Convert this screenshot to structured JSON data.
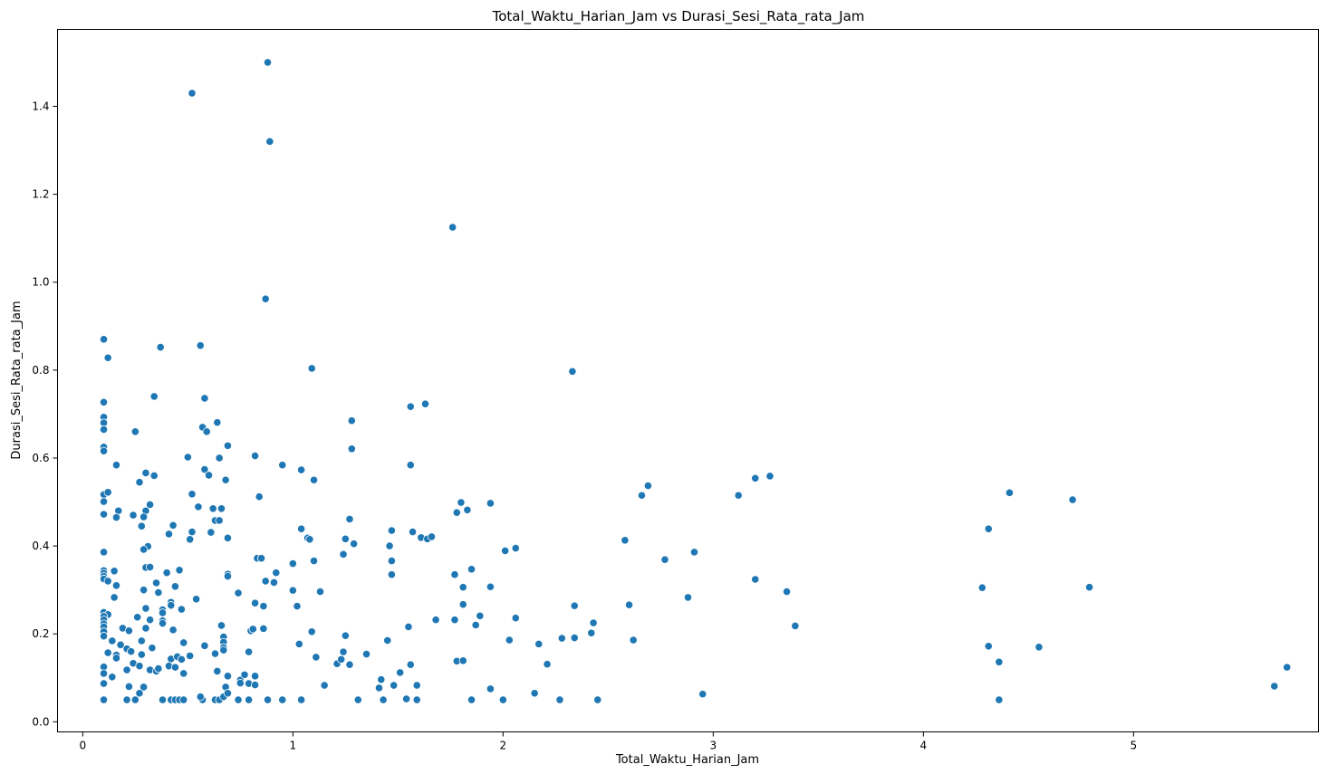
{
  "chart_data": {
    "type": "scatter",
    "title": "Total_Waktu_Harian_Jam vs Durasi_Sesi_Rata_rata_Jam",
    "xlabel": "Total_Waktu_Harian_Jam",
    "ylabel": "Durasi_Sesi_Rata_rata_Jam",
    "xlim": [
      -0.12,
      5.88
    ],
    "ylim": [
      -0.023,
      1.575
    ],
    "x_ticks": [
      0,
      1,
      2,
      3,
      4,
      5
    ],
    "x_tick_labels": [
      "0",
      "1",
      "2",
      "3",
      "4",
      "5"
    ],
    "y_ticks": [
      0.0,
      0.2,
      0.4,
      0.6,
      0.8,
      1.0,
      1.2,
      1.4
    ],
    "y_tick_labels": [
      "0.0",
      "0.2",
      "0.4",
      "0.6",
      "0.8",
      "1.0",
      "1.2",
      "1.4"
    ],
    "grid": false,
    "marker_color": "#1f77b4",
    "points": [
      [
        0.88,
        1.5
      ],
      [
        0.52,
        1.43
      ],
      [
        0.89,
        1.32
      ],
      [
        1.76,
        1.125
      ],
      [
        0.87,
        0.962
      ],
      [
        0.1,
        0.87
      ],
      [
        0.37,
        0.852
      ],
      [
        0.56,
        0.856
      ],
      [
        0.12,
        0.828
      ],
      [
        1.09,
        0.804
      ],
      [
        2.33,
        0.797
      ],
      [
        0.34,
        0.74
      ],
      [
        0.58,
        0.736
      ],
      [
        0.1,
        0.727
      ],
      [
        1.56,
        0.717
      ],
      [
        1.63,
        0.723
      ],
      [
        0.1,
        0.693
      ],
      [
        0.1,
        0.68
      ],
      [
        1.28,
        0.685
      ],
      [
        0.64,
        0.681
      ],
      [
        0.1,
        0.665
      ],
      [
        0.57,
        0.67
      ],
      [
        0.25,
        0.66
      ],
      [
        0.59,
        0.66
      ],
      [
        0.1,
        0.625
      ],
      [
        0.1,
        0.616
      ],
      [
        0.69,
        0.628
      ],
      [
        1.28,
        0.621
      ],
      [
        0.82,
        0.605
      ],
      [
        0.5,
        0.602
      ],
      [
        0.65,
        0.6
      ],
      [
        0.16,
        0.584
      ],
      [
        0.95,
        0.584
      ],
      [
        1.56,
        0.584
      ],
      [
        0.58,
        0.574
      ],
      [
        1.04,
        0.573
      ],
      [
        0.3,
        0.566
      ],
      [
        0.34,
        0.56
      ],
      [
        0.6,
        0.561
      ],
      [
        1.1,
        0.55
      ],
      [
        0.68,
        0.55
      ],
      [
        0.27,
        0.545
      ],
      [
        2.69,
        0.537
      ],
      [
        3.27,
        0.559
      ],
      [
        3.2,
        0.554
      ],
      [
        0.1,
        0.517
      ],
      [
        0.12,
        0.522
      ],
      [
        0.52,
        0.518
      ],
      [
        0.84,
        0.512
      ],
      [
        2.66,
        0.515
      ],
      [
        3.12,
        0.515
      ],
      [
        4.41,
        0.521
      ],
      [
        0.1,
        0.501
      ],
      [
        0.32,
        0.494
      ],
      [
        0.55,
        0.489
      ],
      [
        0.62,
        0.485
      ],
      [
        0.66,
        0.485
      ],
      [
        1.8,
        0.499
      ],
      [
        1.94,
        0.497
      ],
      [
        4.71,
        0.505
      ],
      [
        0.17,
        0.48
      ],
      [
        0.3,
        0.48
      ],
      [
        1.78,
        0.476
      ],
      [
        1.83,
        0.482
      ],
      [
        0.1,
        0.472
      ],
      [
        0.16,
        0.465
      ],
      [
        0.24,
        0.47
      ],
      [
        0.29,
        0.466
      ],
      [
        0.63,
        0.458
      ],
      [
        0.65,
        0.458
      ],
      [
        1.27,
        0.461
      ],
      [
        0.43,
        0.447
      ],
      [
        0.28,
        0.445
      ],
      [
        1.04,
        0.439
      ],
      [
        0.52,
        0.432
      ],
      [
        0.61,
        0.431
      ],
      [
        1.47,
        0.435
      ],
      [
        1.57,
        0.432
      ],
      [
        4.31,
        0.439
      ],
      [
        0.41,
        0.427
      ],
      [
        1.07,
        0.418
      ],
      [
        1.08,
        0.415
      ],
      [
        1.25,
        0.416
      ],
      [
        1.61,
        0.419
      ],
      [
        1.64,
        0.416
      ],
      [
        1.66,
        0.421
      ],
      [
        0.51,
        0.415
      ],
      [
        0.69,
        0.418
      ],
      [
        2.58,
        0.413
      ],
      [
        1.29,
        0.405
      ],
      [
        1.46,
        0.4
      ],
      [
        0.31,
        0.399
      ],
      [
        0.29,
        0.392
      ],
      [
        2.01,
        0.389
      ],
      [
        2.06,
        0.395
      ],
      [
        2.91,
        0.386
      ],
      [
        0.1,
        0.386
      ],
      [
        1.24,
        0.381
      ],
      [
        0.83,
        0.372
      ],
      [
        0.85,
        0.372
      ],
      [
        1.1,
        0.366
      ],
      [
        1.47,
        0.366
      ],
      [
        2.77,
        0.369
      ],
      [
        1.0,
        0.36
      ],
      [
        0.3,
        0.351
      ],
      [
        0.32,
        0.352
      ],
      [
        1.85,
        0.347
      ],
      [
        0.1,
        0.344
      ],
      [
        0.1,
        0.338
      ],
      [
        0.15,
        0.343
      ],
      [
        0.46,
        0.345
      ],
      [
        0.1,
        0.331
      ],
      [
        0.1,
        0.325
      ],
      [
        0.4,
        0.339
      ],
      [
        0.69,
        0.336
      ],
      [
        0.69,
        0.331
      ],
      [
        0.92,
        0.339
      ],
      [
        1.47,
        0.335
      ],
      [
        1.77,
        0.335
      ],
      [
        3.2,
        0.324
      ],
      [
        0.12,
        0.32
      ],
      [
        0.35,
        0.316
      ],
      [
        0.87,
        0.32
      ],
      [
        0.91,
        0.317
      ],
      [
        0.16,
        0.31
      ],
      [
        0.44,
        0.308
      ],
      [
        1.81,
        0.306
      ],
      [
        1.94,
        0.307
      ],
      [
        4.28,
        0.305
      ],
      [
        4.79,
        0.306
      ],
      [
        0.29,
        0.3
      ],
      [
        0.36,
        0.294
      ],
      [
        0.74,
        0.293
      ],
      [
        1.0,
        0.299
      ],
      [
        1.13,
        0.296
      ],
      [
        3.35,
        0.296
      ],
      [
        0.15,
        0.283
      ],
      [
        0.54,
        0.279
      ],
      [
        2.88,
        0.283
      ],
      [
        0.82,
        0.27
      ],
      [
        0.42,
        0.272
      ],
      [
        0.3,
        0.258
      ],
      [
        0.38,
        0.255
      ],
      [
        0.42,
        0.265
      ],
      [
        0.47,
        0.256
      ],
      [
        0.86,
        0.263
      ],
      [
        1.02,
        0.263
      ],
      [
        1.81,
        0.267
      ],
      [
        2.34,
        0.264
      ],
      [
        2.6,
        0.266
      ],
      [
        0.1,
        0.249
      ],
      [
        0.12,
        0.244
      ],
      [
        0.1,
        0.24
      ],
      [
        0.38,
        0.248
      ],
      [
        0.26,
        0.238
      ],
      [
        1.89,
        0.241
      ],
      [
        2.06,
        0.236
      ],
      [
        0.1,
        0.232
      ],
      [
        0.1,
        0.223
      ],
      [
        0.32,
        0.232
      ],
      [
        0.38,
        0.23
      ],
      [
        0.38,
        0.224
      ],
      [
        1.68,
        0.232
      ],
      [
        1.77,
        0.232
      ],
      [
        2.43,
        0.225
      ],
      [
        0.1,
        0.216
      ],
      [
        0.19,
        0.213
      ],
      [
        0.3,
        0.213
      ],
      [
        0.43,
        0.209
      ],
      [
        0.66,
        0.219
      ],
      [
        0.8,
        0.207
      ],
      [
        0.81,
        0.211
      ],
      [
        0.86,
        0.212
      ],
      [
        1.09,
        0.205
      ],
      [
        1.55,
        0.216
      ],
      [
        1.87,
        0.22
      ],
      [
        3.39,
        0.218
      ],
      [
        0.1,
        0.205
      ],
      [
        0.1,
        0.195
      ],
      [
        0.22,
        0.207
      ],
      [
        0.67,
        0.193
      ],
      [
        1.25,
        0.196
      ],
      [
        2.42,
        0.202
      ],
      [
        0.14,
        0.184
      ],
      [
        0.28,
        0.184
      ],
      [
        0.48,
        0.18
      ],
      [
        0.58,
        0.173
      ],
      [
        0.67,
        0.181
      ],
      [
        0.67,
        0.169
      ],
      [
        1.03,
        0.177
      ],
      [
        1.45,
        0.185
      ],
      [
        2.03,
        0.186
      ],
      [
        2.17,
        0.177
      ],
      [
        2.28,
        0.19
      ],
      [
        2.34,
        0.191
      ],
      [
        2.62,
        0.186
      ],
      [
        4.31,
        0.172
      ],
      [
        4.55,
        0.17
      ],
      [
        0.12,
        0.157
      ],
      [
        0.18,
        0.175
      ],
      [
        0.21,
        0.166
      ],
      [
        0.23,
        0.16
      ],
      [
        0.16,
        0.152
      ],
      [
        0.28,
        0.153
      ],
      [
        0.33,
        0.168
      ],
      [
        0.42,
        0.143
      ],
      [
        0.45,
        0.148
      ],
      [
        0.47,
        0.142
      ],
      [
        0.51,
        0.15
      ],
      [
        0.63,
        0.155
      ],
      [
        0.67,
        0.163
      ],
      [
        0.79,
        0.159
      ],
      [
        1.11,
        0.147
      ],
      [
        1.24,
        0.159
      ],
      [
        1.35,
        0.154
      ],
      [
        0.16,
        0.145
      ],
      [
        0.21,
        0.118
      ],
      [
        0.24,
        0.133
      ],
      [
        0.27,
        0.127
      ],
      [
        0.32,
        0.118
      ],
      [
        0.35,
        0.115
      ],
      [
        0.36,
        0.121
      ],
      [
        0.41,
        0.127
      ],
      [
        0.44,
        0.124
      ],
      [
        0.48,
        0.11
      ],
      [
        0.64,
        0.115
      ],
      [
        1.21,
        0.132
      ],
      [
        1.23,
        0.142
      ],
      [
        1.27,
        0.13
      ],
      [
        1.51,
        0.112
      ],
      [
        1.56,
        0.13
      ],
      [
        1.78,
        0.138
      ],
      [
        1.81,
        0.139
      ],
      [
        2.21,
        0.131
      ],
      [
        4.36,
        0.136
      ],
      [
        5.73,
        0.124
      ],
      [
        0.1,
        0.125
      ],
      [
        0.1,
        0.11
      ],
      [
        0.14,
        0.102
      ],
      [
        0.1,
        0.087
      ],
      [
        0.22,
        0.08
      ],
      [
        0.29,
        0.079
      ],
      [
        0.68,
        0.079
      ],
      [
        0.69,
        0.104
      ],
      [
        0.75,
        0.095
      ],
      [
        0.75,
        0.088
      ],
      [
        0.77,
        0.107
      ],
      [
        0.79,
        0.087
      ],
      [
        0.82,
        0.104
      ],
      [
        0.82,
        0.084
      ],
      [
        1.15,
        0.083
      ],
      [
        1.42,
        0.096
      ],
      [
        1.41,
        0.077
      ],
      [
        1.48,
        0.083
      ],
      [
        1.59,
        0.083
      ],
      [
        1.94,
        0.075
      ],
      [
        2.15,
        0.065
      ],
      [
        2.95,
        0.063
      ],
      [
        5.67,
        0.081
      ],
      [
        0.27,
        0.065
      ],
      [
        0.1,
        0.05
      ],
      [
        0.21,
        0.05
      ],
      [
        0.25,
        0.05
      ],
      [
        0.38,
        0.05
      ],
      [
        0.42,
        0.05
      ],
      [
        0.44,
        0.05
      ],
      [
        0.46,
        0.05
      ],
      [
        0.48,
        0.05
      ],
      [
        0.57,
        0.05
      ],
      [
        0.56,
        0.057
      ],
      [
        0.63,
        0.05
      ],
      [
        0.65,
        0.05
      ],
      [
        0.67,
        0.057
      ],
      [
        0.69,
        0.065
      ],
      [
        0.74,
        0.05
      ],
      [
        0.79,
        0.05
      ],
      [
        0.88,
        0.05
      ],
      [
        0.95,
        0.05
      ],
      [
        1.04,
        0.05
      ],
      [
        1.31,
        0.05
      ],
      [
        1.43,
        0.05
      ],
      [
        1.54,
        0.052
      ],
      [
        1.59,
        0.05
      ],
      [
        1.85,
        0.05
      ],
      [
        2.0,
        0.05
      ],
      [
        2.27,
        0.05
      ],
      [
        2.45,
        0.05
      ],
      [
        4.36,
        0.05
      ]
    ]
  }
}
